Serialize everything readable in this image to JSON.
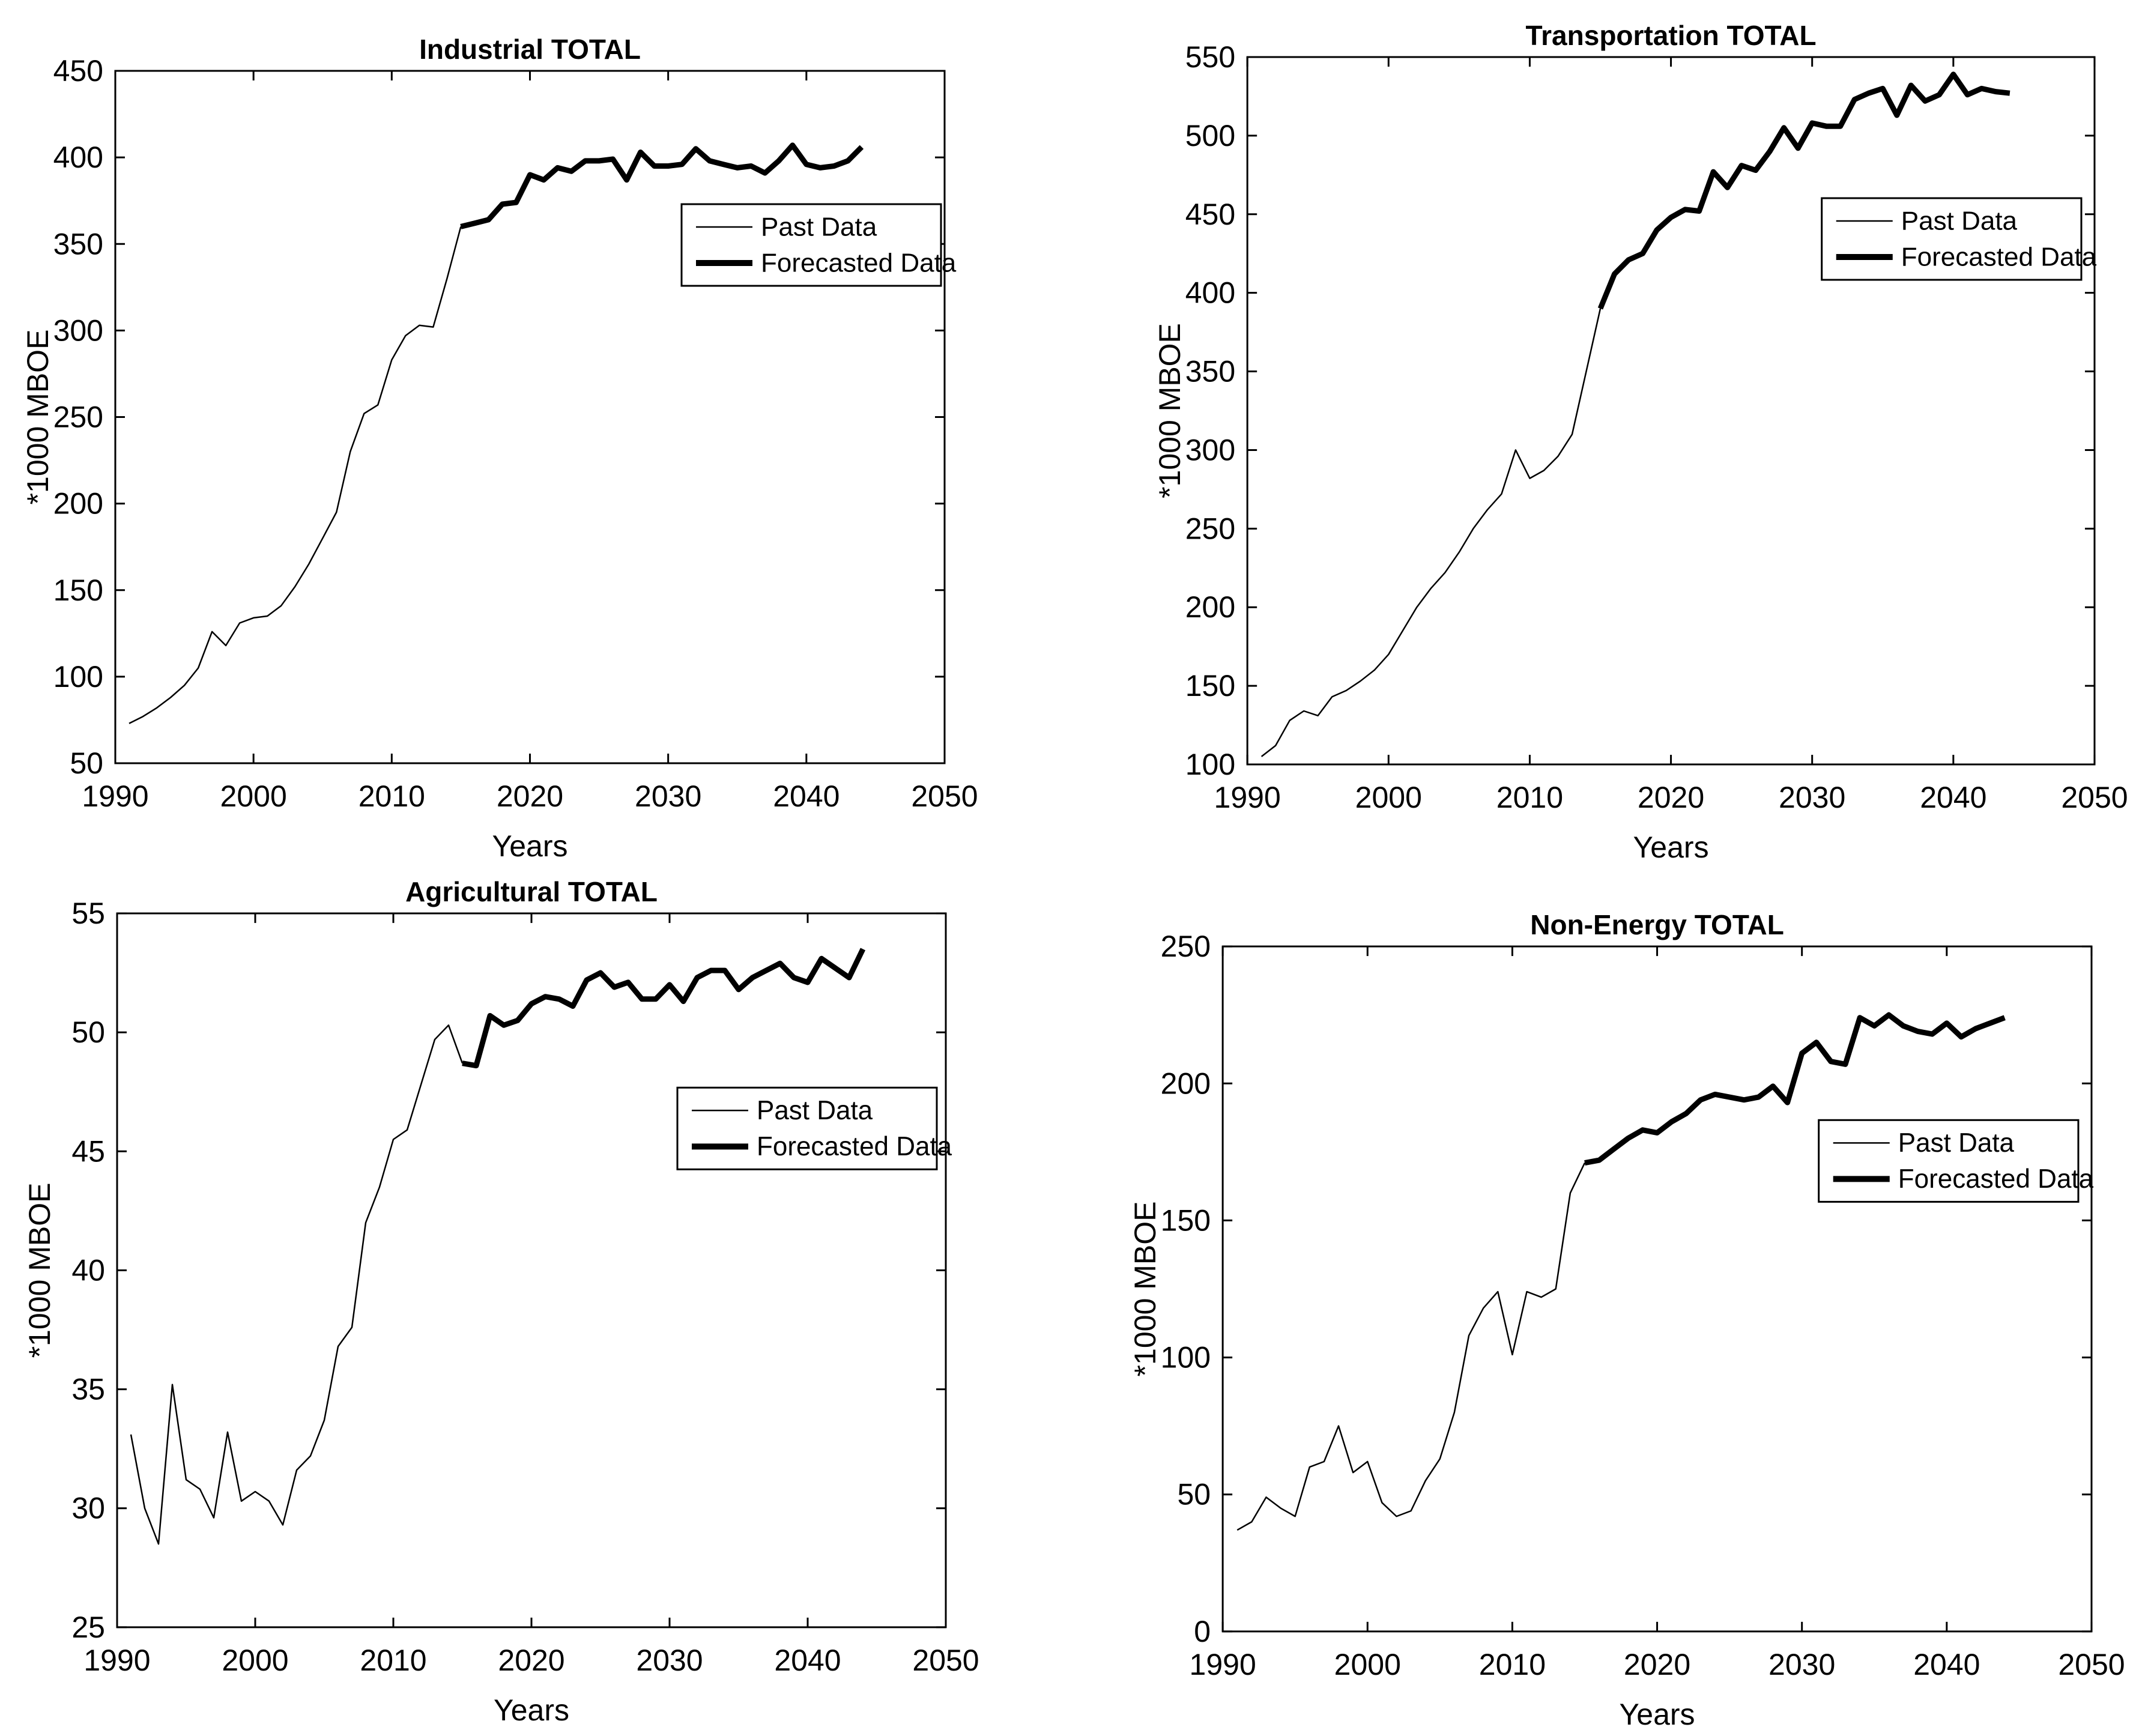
{
  "figure": {
    "background": "#ffffff",
    "line_color": "#000000",
    "text_color": "#000000"
  },
  "legend": {
    "items": [
      {
        "label": "Past Data",
        "style": "thin"
      },
      {
        "label": "Forecasted Data",
        "style": "thick"
      }
    ]
  },
  "chart_data": [
    {
      "type": "line",
      "title": "Industrial TOTAL",
      "xlabel": "Years",
      "ylabel": "*1000 MBOE",
      "xlim": [
        1990,
        2050
      ],
      "ylim": [
        50,
        450
      ],
      "x_ticks": [
        1990,
        2000,
        2010,
        2020,
        2030,
        2040,
        2050
      ],
      "y_ticks": [
        50,
        100,
        150,
        200,
        250,
        300,
        350,
        400,
        450
      ],
      "grid": false,
      "legend_position": "upper right",
      "series": [
        {
          "name": "Past Data",
          "role": "past",
          "x": [
            1991,
            1992,
            1993,
            1994,
            1995,
            1996,
            1997,
            1998,
            1999,
            2000,
            2001,
            2002,
            2003,
            2004,
            2005,
            2006,
            2007,
            2008,
            2009,
            2010,
            2011,
            2012,
            2013,
            2014,
            2015
          ],
          "y": [
            73,
            77,
            82,
            88,
            95,
            105,
            126,
            118,
            131,
            134,
            135,
            141,
            152,
            165,
            180,
            195,
            230,
            252,
            257,
            283,
            297,
            303,
            302,
            330,
            360
          ]
        },
        {
          "name": "Forecasted Data",
          "role": "forecast",
          "x": [
            2015,
            2016,
            2017,
            2018,
            2019,
            2020,
            2021,
            2022,
            2023,
            2024,
            2025,
            2026,
            2027,
            2028,
            2029,
            2030,
            2031,
            2032,
            2033,
            2034,
            2035,
            2036,
            2037,
            2038,
            2039,
            2040,
            2041,
            2042,
            2043,
            2044
          ],
          "y": [
            360,
            362,
            364,
            373,
            374,
            390,
            387,
            394,
            392,
            398,
            398,
            399,
            387,
            403,
            395,
            395,
            396,
            405,
            398,
            396,
            394,
            395,
            391,
            398,
            407,
            396,
            394,
            395,
            398,
            406
          ]
        }
      ]
    },
    {
      "type": "line",
      "title": "Transportation TOTAL",
      "xlabel": "Years",
      "ylabel": "*1000 MBOE",
      "xlim": [
        1990,
        2050
      ],
      "ylim": [
        100,
        550
      ],
      "x_ticks": [
        1990,
        2000,
        2010,
        2020,
        2030,
        2040,
        2050
      ],
      "y_ticks": [
        100,
        150,
        200,
        250,
        300,
        350,
        400,
        450,
        500,
        550
      ],
      "grid": false,
      "legend_position": "upper right",
      "series": [
        {
          "name": "Past Data",
          "role": "past",
          "x": [
            1991,
            1992,
            1993,
            1994,
            1995,
            1996,
            1997,
            1998,
            1999,
            2000,
            2001,
            2002,
            2003,
            2004,
            2005,
            2006,
            2007,
            2008,
            2009,
            2010,
            2011,
            2012,
            2013,
            2014,
            2015
          ],
          "y": [
            105,
            112,
            128,
            134,
            131,
            143,
            147,
            153,
            160,
            170,
            185,
            200,
            212,
            222,
            235,
            250,
            262,
            272,
            300,
            282,
            287,
            296,
            310,
            350,
            390
          ]
        },
        {
          "name": "Forecasted Data",
          "role": "forecast",
          "x": [
            2015,
            2016,
            2017,
            2018,
            2019,
            2020,
            2021,
            2022,
            2023,
            2024,
            2025,
            2026,
            2027,
            2028,
            2029,
            2030,
            2031,
            2032,
            2033,
            2034,
            2035,
            2036,
            2037,
            2038,
            2039,
            2040,
            2041,
            2042,
            2043,
            2044
          ],
          "y": [
            390,
            412,
            421,
            425,
            440,
            448,
            453,
            452,
            477,
            467,
            481,
            478,
            490,
            505,
            492,
            508,
            506,
            506,
            523,
            527,
            530,
            513,
            532,
            522,
            526,
            539,
            526,
            530,
            528,
            527
          ]
        }
      ]
    },
    {
      "type": "line",
      "title": "Agricultural TOTAL",
      "xlabel": "Years",
      "ylabel": "*1000 MBOE",
      "xlim": [
        1990,
        2050
      ],
      "ylim": [
        25,
        55
      ],
      "x_ticks": [
        1990,
        2000,
        2010,
        2020,
        2030,
        2040,
        2050
      ],
      "y_ticks": [
        25,
        30,
        35,
        40,
        45,
        50,
        55
      ],
      "grid": false,
      "legend_position": "center right",
      "series": [
        {
          "name": "Past Data",
          "role": "past",
          "x": [
            1991,
            1992,
            1993,
            1994,
            1995,
            1996,
            1997,
            1998,
            1999,
            2000,
            2001,
            2002,
            2003,
            2004,
            2005,
            2006,
            2007,
            2008,
            2009,
            2010,
            2011,
            2012,
            2013,
            2014,
            2015
          ],
          "y": [
            33.1,
            30.0,
            28.5,
            35.2,
            31.2,
            30.8,
            29.6,
            33.2,
            30.3,
            30.7,
            30.3,
            29.3,
            31.6,
            32.2,
            33.7,
            36.8,
            37.6,
            42.0,
            43.5,
            45.5,
            45.9,
            47.8,
            49.7,
            50.3,
            48.7
          ]
        },
        {
          "name": "Forecasted Data",
          "role": "forecast",
          "x": [
            2015,
            2016,
            2017,
            2018,
            2019,
            2020,
            2021,
            2022,
            2023,
            2024,
            2025,
            2026,
            2027,
            2028,
            2029,
            2030,
            2031,
            2032,
            2033,
            2034,
            2035,
            2036,
            2037,
            2038,
            2039,
            2040,
            2041,
            2042,
            2043,
            2044
          ],
          "y": [
            48.7,
            48.6,
            50.7,
            50.3,
            50.5,
            51.2,
            51.5,
            51.4,
            51.1,
            52.2,
            52.5,
            51.9,
            52.1,
            51.4,
            51.4,
            52.0,
            51.3,
            52.3,
            52.6,
            52.6,
            51.8,
            52.3,
            52.6,
            52.9,
            52.3,
            52.1,
            53.1,
            52.7,
            52.3,
            53.5
          ]
        }
      ]
    },
    {
      "type": "line",
      "title": "Non-Energy TOTAL",
      "xlabel": "Years",
      "ylabel": "*1000 MBOE",
      "xlim": [
        1990,
        2050
      ],
      "ylim": [
        0,
        250
      ],
      "x_ticks": [
        1990,
        2000,
        2010,
        2020,
        2030,
        2040,
        2050
      ],
      "y_ticks": [
        0,
        50,
        100,
        150,
        200,
        250
      ],
      "grid": false,
      "legend_position": "center right",
      "series": [
        {
          "name": "Past Data",
          "role": "past",
          "x": [
            1991,
            1992,
            1993,
            1994,
            1995,
            1996,
            1997,
            1998,
            1999,
            2000,
            2001,
            2002,
            2003,
            2004,
            2005,
            2006,
            2007,
            2008,
            2009,
            2010,
            2011,
            2012,
            2013,
            2014,
            2015
          ],
          "y": [
            37,
            40,
            49,
            45,
            42,
            60,
            62,
            75,
            58,
            62,
            47,
            42,
            44,
            55,
            63,
            80,
            108,
            118,
            124,
            101,
            124,
            122,
            125,
            160,
            171
          ]
        },
        {
          "name": "Forecasted Data",
          "role": "forecast",
          "x": [
            2015,
            2016,
            2017,
            2018,
            2019,
            2020,
            2021,
            2022,
            2023,
            2024,
            2025,
            2026,
            2027,
            2028,
            2029,
            2030,
            2031,
            2032,
            2033,
            2034,
            2035,
            2036,
            2037,
            2038,
            2039,
            2040,
            2041,
            2042,
            2043,
            2044
          ],
          "y": [
            171,
            172,
            176,
            180,
            183,
            182,
            186,
            189,
            194,
            196,
            195,
            194,
            195,
            199,
            193,
            211,
            215,
            208,
            207,
            224,
            221,
            225,
            221,
            219,
            218,
            222,
            217,
            220,
            222,
            224
          ]
        }
      ]
    }
  ]
}
